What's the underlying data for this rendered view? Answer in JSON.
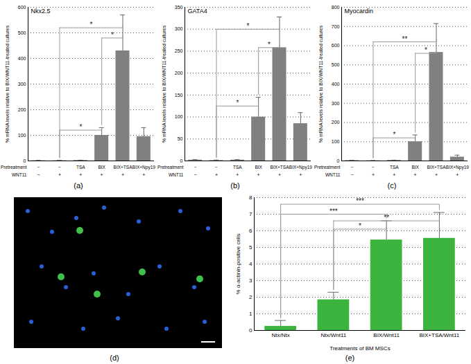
{
  "chart_data": [
    {
      "type": "bar",
      "title": "Nkx2.5",
      "caption": "(a)",
      "y_label": "% mRNA levels relative to BIX/WNT11-treated cultures",
      "x_label": "Pretreatment",
      "categories": [
        "−",
        "−",
        "TSA",
        "BIX",
        "BIX+TSA",
        "BIX+Npy19"
      ],
      "second_row": {
        "label": "WNT11",
        "categories": [
          "−",
          "+",
          "+",
          "+",
          "+",
          "+"
        ]
      },
      "values": [
        1,
        1,
        2,
        100,
        430,
        95
      ],
      "error": [
        1,
        1,
        1,
        30,
        140,
        35
      ],
      "color": "#808080",
      "ylim": [
        0,
        600
      ],
      "yticks": [
        0,
        100,
        200,
        300,
        400,
        500,
        600
      ],
      "grid": true,
      "significance": [
        {
          "from": 1,
          "to": 4,
          "y": 520,
          "label": "*"
        },
        {
          "from": 3,
          "to": 4,
          "y": 480,
          "label": "*"
        },
        {
          "from": 1,
          "to": 3,
          "y": 120,
          "label": "*"
        }
      ]
    },
    {
      "type": "bar",
      "title": "GATA4",
      "caption": "(b)",
      "y_label": "% mRNA levels relative to BIX/WNT11-treated cultures",
      "x_label": "Pretreatment",
      "categories": [
        "−",
        "−",
        "TSA",
        "BIX",
        "BIX+TSA",
        "BIX+Npy19"
      ],
      "second_row": {
        "label": "WNT11",
        "categories": [
          "−",
          "+",
          "+",
          "+",
          "+",
          "+"
        ]
      },
      "values": [
        2,
        1,
        2,
        100,
        258,
        85
      ],
      "error": [
        1,
        1,
        1,
        45,
        70,
        25
      ],
      "color": "#808080",
      "ylim": [
        0,
        350
      ],
      "yticks": [
        0,
        50,
        100,
        150,
        200,
        250,
        300,
        350
      ],
      "grid": true,
      "significance": [
        {
          "from": 1,
          "to": 4,
          "y": 300,
          "label": "*"
        },
        {
          "from": 3,
          "to": 4,
          "y": 258,
          "label": "*"
        },
        {
          "from": 1,
          "to": 3,
          "y": 125,
          "label": "*"
        }
      ]
    },
    {
      "type": "bar",
      "title": "Myocardin",
      "caption": "(c)",
      "y_label": "% mRNA levels relative to BIX/WNT11-treated cultures",
      "x_label": "Pretreatment",
      "categories": [
        "−",
        "−",
        "TSA",
        "BIX",
        "BIX+TSA",
        "BIX+Npy19"
      ],
      "second_row": {
        "label": "WNT11",
        "categories": [
          "−",
          "+",
          "+",
          "+",
          "+",
          "+"
        ]
      },
      "values": [
        2,
        1,
        3,
        100,
        565,
        20
      ],
      "error": [
        1,
        1,
        1,
        35,
        150,
        10
      ],
      "color": "#808080",
      "ylim": [
        0,
        800
      ],
      "yticks": [
        0,
        100,
        200,
        300,
        400,
        500,
        600,
        700,
        800
      ],
      "grid": true,
      "significance": [
        {
          "from": 1,
          "to": 4,
          "y": 620,
          "label": "**"
        },
        {
          "from": 3,
          "to": 4,
          "y": 560,
          "label": "*"
        },
        {
          "from": 1,
          "to": 3,
          "y": 120,
          "label": "*"
        }
      ]
    },
    {
      "type": "image",
      "caption": "(d)"
    },
    {
      "type": "bar",
      "caption": "(e)",
      "y_label": "% α-actinin-positive cells",
      "x_label": "Treatments of BM MSCs",
      "categories": [
        "Ntx/Ntx",
        "Ntx/Wnt11",
        "BIX/Wnt11",
        "BIX+TSA/Wnt11"
      ],
      "values": [
        0.25,
        1.85,
        5.45,
        5.55
      ],
      "error": [
        0.35,
        0.45,
        1.15,
        1.55
      ],
      "color": "#3cb33c",
      "ylim": [
        0,
        8
      ],
      "yticks": [
        0,
        1,
        2,
        3,
        4,
        5,
        6,
        7,
        8
      ],
      "grid": true,
      "significance": [
        {
          "from": 0,
          "to": 3,
          "y": 7.6,
          "label": "***"
        },
        {
          "from": 0,
          "to": 2,
          "y": 7.0,
          "label": "***"
        },
        {
          "from": 1,
          "to": 3,
          "y": 6.6,
          "label": "**"
        },
        {
          "from": 1,
          "to": 2,
          "y": 6.1,
          "label": "*"
        }
      ]
    }
  ]
}
